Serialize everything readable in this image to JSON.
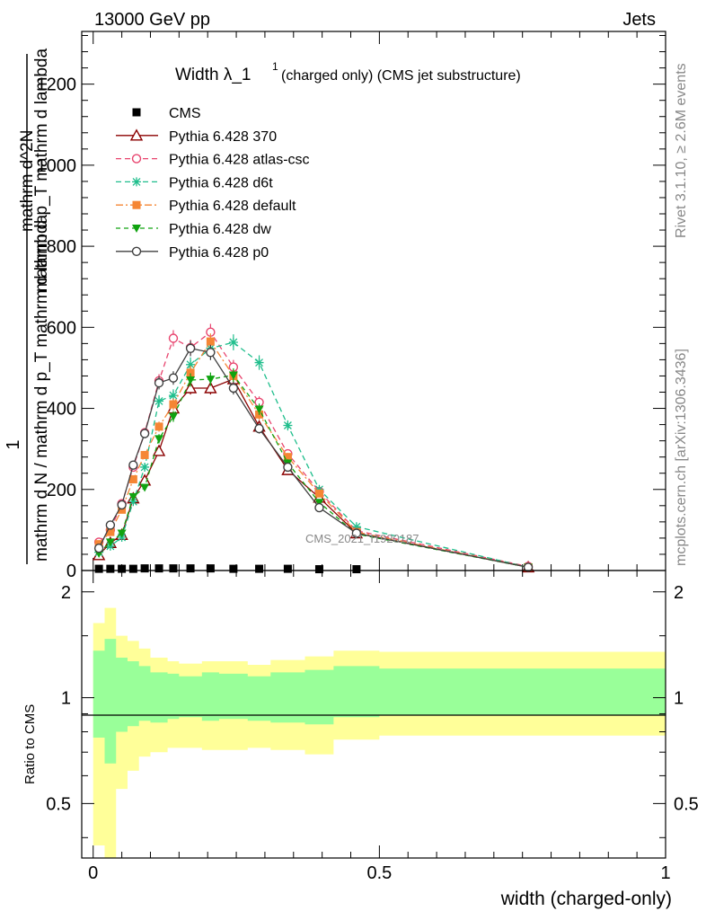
{
  "header": {
    "left": "13000 GeV pp",
    "right": "Jets"
  },
  "side": {
    "rivet": "Rivet 3.1.10, ≥ 2.6M events",
    "mcplots": "mcplots.cern.ch [arXiv:1306.3436]"
  },
  "watermark": "CMS_2021_I1920187",
  "colors": {
    "cms": "#000000",
    "p370": "#8b0000",
    "atlas": "#e8446e",
    "d6t": "#1fbe8c",
    "default": "#f58634",
    "dw": "#10a310",
    "p0": "#3f3f3f",
    "band_outer": "#ffff99",
    "band_inner": "#99ff99"
  },
  "chart_data": [
    {
      "type": "line",
      "title": "Width λ_1^1 (charged only) (CMS jet substructure)",
      "title_main": "Width λ_1",
      "title_sup": "1",
      "title_rest": "(charged only) (CMS jet substructure)",
      "ylabel_numerator": "1",
      "ylabel_denominator": "mathrm d N / mathrm d p_T mathrm d lambda",
      "ylabel_right": "mathrm d^2N",
      "ylabel_right_denominator": "mathrm d p_T mathrm d lambda",
      "xlim": [
        -0.02,
        1.0
      ],
      "ylim": [
        0,
        1330
      ],
      "yticks": [
        0,
        200,
        400,
        600,
        800,
        1000,
        1200
      ],
      "ytick_labels": [
        "0",
        "200",
        "400",
        "600",
        "800",
        "1000",
        "1200"
      ],
      "x": [
        0.01,
        0.03,
        0.05,
        0.07,
        0.09,
        0.115,
        0.14,
        0.17,
        0.205,
        0.245,
        0.29,
        0.34,
        0.395,
        0.46,
        0.76
      ],
      "series": [
        {
          "name": "CMS",
          "key": "cms",
          "marker": "square",
          "dash": "none",
          "values": [
            2,
            2,
            2,
            2,
            3,
            3,
            3,
            3,
            3,
            2,
            2,
            2,
            1,
            1,
            0
          ]
        },
        {
          "name": "Pythia 6.428 370",
          "key": "p370",
          "marker": "triangle-open",
          "dash": "none",
          "values": [
            38,
            68,
            88,
            178,
            222,
            295,
            400,
            450,
            450,
            472,
            355,
            248,
            180,
            92,
            8
          ]
        },
        {
          "name": "Pythia 6.428 atlas-csc",
          "key": "atlas",
          "marker": "circle-open",
          "dash": "6,4",
          "values": [
            70,
            100,
            165,
            255,
            340,
            468,
            573,
            550,
            588,
            502,
            415,
            288,
            195,
            98,
            10
          ]
        },
        {
          "name": "Pythia 6.428 d6t",
          "key": "d6t",
          "marker": "star",
          "dash": "6,4",
          "values": [
            45,
            60,
            82,
            170,
            255,
            418,
            432,
            508,
            548,
            563,
            513,
            358,
            200,
            108,
            8
          ]
        },
        {
          "name": "Pythia 6.428 default",
          "key": "default",
          "marker": "square",
          "dash": "8,3,2,3",
          "values": [
            65,
            95,
            150,
            225,
            285,
            355,
            410,
            488,
            565,
            480,
            385,
            280,
            190,
            95,
            8
          ]
        },
        {
          "name": "Pythia 6.428 dw",
          "key": "dw",
          "marker": "triangle-down",
          "dash": "5,4",
          "values": [
            42,
            70,
            92,
            182,
            205,
            325,
            380,
            470,
            472,
            482,
            398,
            265,
            168,
            90,
            8
          ]
        },
        {
          "name": "Pythia 6.428 p0",
          "key": "p0",
          "marker": "circle-open",
          "dash": "none",
          "values": [
            55,
            112,
            162,
            260,
            338,
            463,
            475,
            548,
            538,
            450,
            350,
            255,
            155,
            92,
            8
          ]
        }
      ]
    },
    {
      "type": "area",
      "xlabel": "width (charged-only)",
      "ylabel": "Ratio to CMS",
      "xlim": [
        -0.02,
        1.0
      ],
      "ylim": [
        0.35,
        2.3
      ],
      "xticks": [
        0,
        0.5,
        1
      ],
      "xtick_labels": [
        "0",
        "0.5",
        "1"
      ],
      "yticks": [
        0.5,
        1,
        2
      ],
      "ytick_labels": [
        "0.5",
        "1",
        "2"
      ],
      "bin_edges": [
        0,
        0.02,
        0.04,
        0.06,
        0.08,
        0.1,
        0.13,
        0.15,
        0.19,
        0.22,
        0.27,
        0.31,
        0.37,
        0.42,
        0.5,
        1.0
      ],
      "outer_hi": [
        1.63,
        1.8,
        1.5,
        1.45,
        1.38,
        1.3,
        1.27,
        1.25,
        1.27,
        1.27,
        1.24,
        1.28,
        1.31,
        1.36,
        1.35
      ],
      "outer_lo": [
        0.38,
        0.2,
        0.55,
        0.62,
        0.68,
        0.7,
        0.72,
        0.72,
        0.71,
        0.71,
        0.72,
        0.71,
        0.69,
        0.76,
        0.78
      ],
      "inner_hi": [
        1.36,
        1.47,
        1.3,
        1.27,
        1.23,
        1.18,
        1.17,
        1.15,
        1.18,
        1.17,
        1.15,
        1.18,
        1.2,
        1.23,
        1.21
      ],
      "inner_lo": [
        0.77,
        0.65,
        0.8,
        0.83,
        0.86,
        0.85,
        0.87,
        0.88,
        0.86,
        0.87,
        0.86,
        0.85,
        0.84,
        0.88,
        0.89
      ]
    }
  ]
}
